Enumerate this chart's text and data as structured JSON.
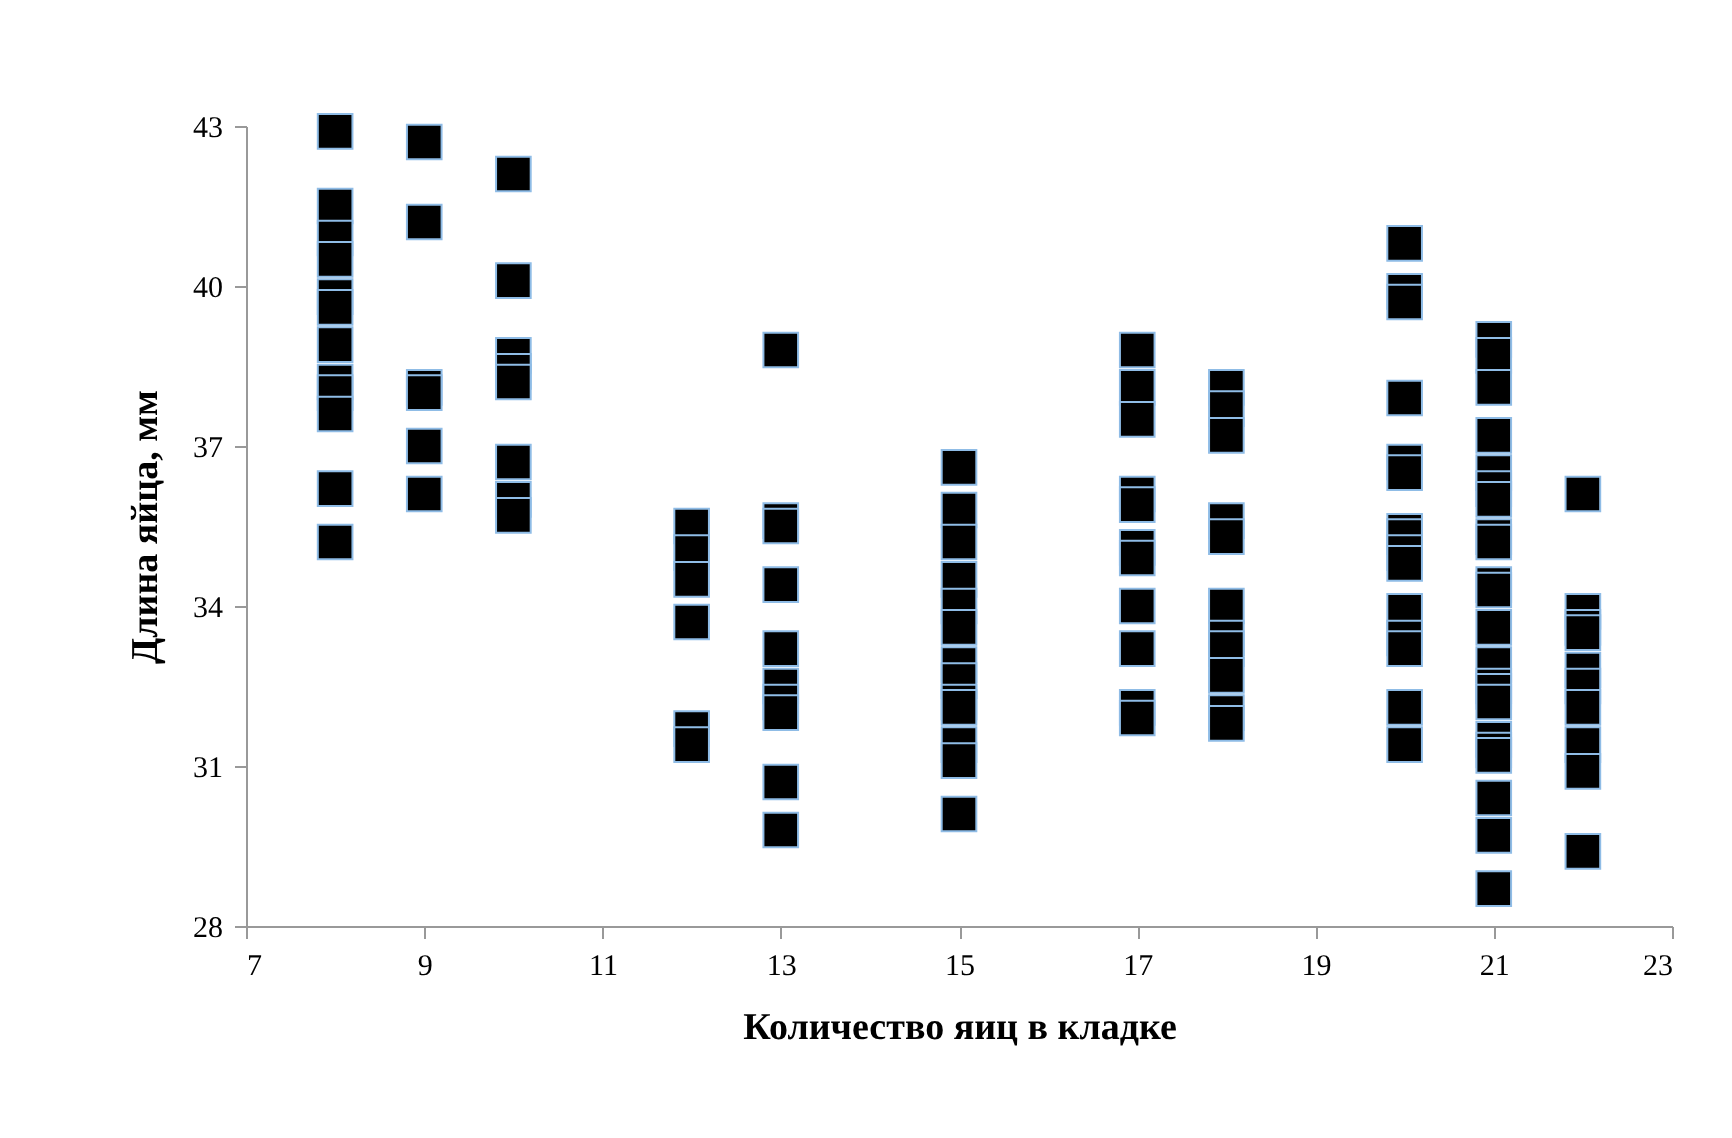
{
  "chart_data": {
    "type": "scatter",
    "xlabel": "Количество яиц в кладке",
    "ylabel": "Длина яйца, мм",
    "marker": "square",
    "grid": false,
    "xlim": [
      7,
      23
    ],
    "xticks": [
      7,
      9,
      11,
      13,
      15,
      17,
      19,
      21,
      23
    ],
    "ylim": [
      28,
      43
    ],
    "yticks": [
      28,
      31,
      34,
      37,
      40,
      43
    ],
    "series": [
      {
        "color": "#000000",
        "x": [
          8,
          8,
          8,
          8,
          8,
          8,
          8,
          8,
          8,
          8,
          8,
          8,
          9,
          9,
          9,
          9,
          9,
          9,
          10,
          10,
          10,
          10,
          10,
          10,
          10,
          10,
          12,
          12,
          12,
          12,
          12,
          12,
          13,
          13,
          13,
          13,
          13,
          13,
          13,
          13,
          13,
          13,
          15,
          15,
          15,
          15,
          15,
          15,
          15,
          15,
          15,
          15,
          15,
          15,
          15,
          17,
          17,
          17,
          17,
          17,
          17,
          17,
          17,
          17,
          17,
          17,
          18,
          18,
          18,
          18,
          18,
          18,
          18,
          18,
          18,
          18,
          18,
          20,
          20,
          20,
          20,
          20,
          20,
          20,
          20,
          20,
          20,
          20,
          20,
          20,
          20,
          20,
          21,
          21,
          21,
          21,
          21,
          21,
          21,
          21,
          21,
          21,
          21,
          21,
          21,
          21,
          21,
          21,
          21,
          21,
          21,
          21,
          21,
          21,
          22,
          22,
          22,
          22,
          22,
          22,
          22,
          22,
          22,
          22
        ],
        "values": [
          42.9,
          41.5,
          40.9,
          40.5,
          39.8,
          39.6,
          38.9,
          38.2,
          38.0,
          37.6,
          36.2,
          35.2,
          42.7,
          41.2,
          38.1,
          38.0,
          37.0,
          36.1,
          42.1,
          40.1,
          38.7,
          38.4,
          38.2,
          36.7,
          36.0,
          35.7,
          35.5,
          35.0,
          34.5,
          33.7,
          31.7,
          31.4,
          38.8,
          35.6,
          35.5,
          34.4,
          33.2,
          32.5,
          32.2,
          32.0,
          30.7,
          29.8,
          36.6,
          35.8,
          35.2,
          34.5,
          34.0,
          33.6,
          32.9,
          32.6,
          32.2,
          32.1,
          31.4,
          31.1,
          30.1,
          38.8,
          38.1,
          37.5,
          36.1,
          35.9,
          35.1,
          34.9,
          34.0,
          33.2,
          32.1,
          31.9,
          38.1,
          37.7,
          37.2,
          35.6,
          35.3,
          34.0,
          33.4,
          33.2,
          32.7,
          32.0,
          31.8,
          40.8,
          39.9,
          39.7,
          37.9,
          36.7,
          36.5,
          35.4,
          35.3,
          35.0,
          34.8,
          33.9,
          33.4,
          33.2,
          32.1,
          31.4,
          39.0,
          38.7,
          38.1,
          37.2,
          36.5,
          36.2,
          36.0,
          35.3,
          35.2,
          34.4,
          34.3,
          33.6,
          32.9,
          32.5,
          32.4,
          32.2,
          31.5,
          31.3,
          31.2,
          30.4,
          29.7,
          28.7,
          36.1,
          33.9,
          33.6,
          33.5,
          32.8,
          32.5,
          32.1,
          31.4,
          30.9,
          29.4
        ]
      }
    ]
  }
}
